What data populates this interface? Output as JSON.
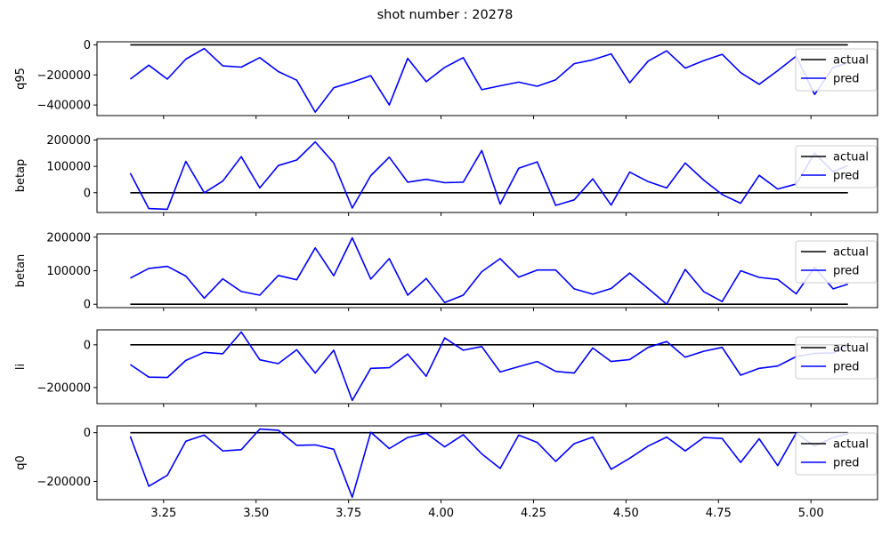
{
  "figure_title": "shot number : 20278",
  "colors": {
    "actual": "#000000",
    "pred": "#0000ff",
    "axes": "#000000",
    "legend_edge": "#cccccc"
  },
  "shared_x": {
    "xlim": [
      3.07,
      5.18
    ],
    "ticks": [
      3.25,
      3.5,
      3.75,
      4.0,
      4.25,
      4.5,
      4.75,
      5.0
    ],
    "tick_labels": [
      "3.25",
      "3.50",
      "3.75",
      "4.00",
      "4.25",
      "4.50",
      "4.75",
      "5.00"
    ]
  },
  "chart_data": [
    {
      "type": "line",
      "ylabel": "q95",
      "ylim": [
        -470000,
        20000
      ],
      "yticks": [
        0,
        -200000,
        -400000
      ],
      "ytick_labels": [
        "0",
        "−200000",
        "−400000"
      ],
      "legend": {
        "location": "upper right",
        "entries": [
          "actual",
          "pred"
        ]
      },
      "series": [
        {
          "name": "actual",
          "color": "#000000",
          "x": [
            3.16,
            5.1
          ],
          "y": [
            0,
            0
          ]
        },
        {
          "name": "pred",
          "color": "#0000ff",
          "x": [
            3.16,
            3.21,
            3.26,
            3.31,
            3.36,
            3.41,
            3.46,
            3.51,
            3.56,
            3.61,
            3.66,
            3.71,
            3.76,
            3.81,
            3.86,
            3.91,
            3.96,
            4.01,
            4.06,
            4.11,
            4.16,
            4.21,
            4.26,
            4.31,
            4.36,
            4.41,
            4.46,
            4.51,
            4.56,
            4.61,
            4.66,
            4.71,
            4.76,
            4.81,
            4.86,
            4.91,
            4.96,
            5.01,
            5.06,
            5.1
          ],
          "y": [
            -228000,
            -135000,
            -228000,
            -95000,
            -25000,
            -140000,
            -148000,
            -85000,
            -178000,
            -235000,
            -447000,
            -285000,
            -248000,
            -205000,
            -400000,
            -90000,
            -245000,
            -150000,
            -85000,
            -298000,
            -272000,
            -248000,
            -275000,
            -232000,
            -125000,
            -100000,
            -60000,
            -252000,
            -108000,
            -40000,
            -155000,
            -105000,
            -63000,
            -185000,
            -262000,
            -172000,
            -75000,
            -330000,
            -150000,
            -120000
          ]
        }
      ]
    },
    {
      "type": "line",
      "ylabel": "betap",
      "ylim": [
        -75000,
        205000
      ],
      "yticks": [
        200000,
        100000,
        0
      ],
      "ytick_labels": [
        "200000",
        "100000",
        "0"
      ],
      "legend": {
        "location": "upper right",
        "entries": [
          "actual",
          "pred"
        ]
      },
      "series": [
        {
          "name": "actual",
          "color": "#000000",
          "x": [
            3.16,
            5.1
          ],
          "y": [
            0,
            0
          ]
        },
        {
          "name": "pred",
          "color": "#0000ff",
          "x": [
            3.16,
            3.21,
            3.26,
            3.31,
            3.36,
            3.41,
            3.46,
            3.51,
            3.56,
            3.61,
            3.66,
            3.71,
            3.76,
            3.81,
            3.86,
            3.91,
            3.96,
            4.01,
            4.06,
            4.11,
            4.16,
            4.21,
            4.26,
            4.31,
            4.36,
            4.41,
            4.46,
            4.51,
            4.56,
            4.61,
            4.66,
            4.71,
            4.76,
            4.81,
            4.86,
            4.91,
            4.96,
            5.01,
            5.06,
            5.1
          ],
          "y": [
            74000,
            -60000,
            -63000,
            119000,
            0,
            44000,
            137000,
            18000,
            103000,
            124000,
            193000,
            113000,
            -58000,
            65000,
            135000,
            40000,
            51000,
            38000,
            40000,
            160000,
            -43000,
            93000,
            117000,
            -48000,
            -27000,
            53000,
            -47000,
            78000,
            42000,
            18000,
            113000,
            48000,
            -7000,
            -40000,
            66000,
            14000,
            33000,
            150000,
            80000,
            103000
          ]
        }
      ]
    },
    {
      "type": "line",
      "ylabel": "betan",
      "ylim": [
        -10000,
        210000
      ],
      "yticks": [
        200000,
        100000,
        0
      ],
      "ytick_labels": [
        "200000",
        "100000",
        "0"
      ],
      "legend": {
        "location": "upper right",
        "entries": [
          "actual",
          "pred"
        ]
      },
      "series": [
        {
          "name": "actual",
          "color": "#000000",
          "x": [
            3.16,
            5.1
          ],
          "y": [
            0,
            0
          ]
        },
        {
          "name": "pred",
          "color": "#0000ff",
          "x": [
            3.16,
            3.21,
            3.26,
            3.31,
            3.36,
            3.41,
            3.46,
            3.51,
            3.56,
            3.61,
            3.66,
            3.71,
            3.76,
            3.81,
            3.86,
            3.91,
            3.96,
            4.01,
            4.06,
            4.11,
            4.16,
            4.21,
            4.26,
            4.31,
            4.36,
            4.41,
            4.46,
            4.51,
            4.56,
            4.61,
            4.66,
            4.71,
            4.76,
            4.81,
            4.86,
            4.91,
            4.96,
            5.01,
            5.06,
            5.1
          ],
          "y": [
            78000,
            107000,
            113000,
            84000,
            18000,
            76000,
            38000,
            27000,
            86000,
            73000,
            168000,
            85000,
            198000,
            75000,
            136000,
            27000,
            77000,
            5000,
            27000,
            97000,
            136000,
            81000,
            102000,
            102000,
            46000,
            30000,
            47000,
            93000,
            47000,
            0,
            104000,
            38000,
            8000,
            100000,
            80000,
            74000,
            31000,
            110000,
            46000,
            60000
          ]
        }
      ]
    },
    {
      "type": "line",
      "ylabel": "li",
      "ylim": [
        -275000,
        70000
      ],
      "yticks": [
        0,
        -200000
      ],
      "ytick_labels": [
        "0",
        "−200000"
      ],
      "legend": {
        "location": "upper right",
        "entries": [
          "actual",
          "pred"
        ]
      },
      "series": [
        {
          "name": "actual",
          "color": "#000000",
          "x": [
            3.16,
            5.1
          ],
          "y": [
            0,
            0
          ]
        },
        {
          "name": "pred",
          "color": "#0000ff",
          "x": [
            3.16,
            3.21,
            3.26,
            3.31,
            3.36,
            3.41,
            3.46,
            3.51,
            3.56,
            3.61,
            3.66,
            3.71,
            3.76,
            3.81,
            3.86,
            3.91,
            3.96,
            4.01,
            4.06,
            4.11,
            4.16,
            4.21,
            4.26,
            4.31,
            4.36,
            4.41,
            4.46,
            4.51,
            4.56,
            4.61,
            4.66,
            4.71,
            4.76,
            4.81,
            4.86,
            4.91,
            4.96,
            5.01,
            5.06,
            5.1
          ],
          "y": [
            -92000,
            -151000,
            -153000,
            -73000,
            -35000,
            -42000,
            60000,
            -70000,
            -88000,
            -23000,
            -132000,
            -25000,
            -260000,
            -110000,
            -107000,
            -43000,
            -147000,
            32000,
            -25000,
            -8000,
            -127000,
            -102000,
            -78000,
            -124000,
            -132000,
            -15000,
            -78000,
            -69000,
            -12000,
            15000,
            -58000,
            -30000,
            -12000,
            -142000,
            -110000,
            -99000,
            -55000,
            -40000,
            -38000,
            -5000
          ]
        }
      ]
    },
    {
      "type": "line",
      "ylabel": "q0",
      "ylim": [
        -275000,
        28000
      ],
      "yticks": [
        0,
        -200000
      ],
      "ytick_labels": [
        "0",
        "−200000"
      ],
      "legend": {
        "location": "upper right",
        "entries": [
          "actual",
          "pred"
        ]
      },
      "series": [
        {
          "name": "actual",
          "color": "#000000",
          "x": [
            3.16,
            5.1
          ],
          "y": [
            0,
            0
          ]
        },
        {
          "name": "pred",
          "color": "#0000ff",
          "x": [
            3.16,
            3.21,
            3.26,
            3.31,
            3.36,
            3.41,
            3.46,
            3.51,
            3.56,
            3.61,
            3.66,
            3.71,
            3.76,
            3.81,
            3.86,
            3.91,
            3.96,
            4.01,
            4.06,
            4.11,
            4.16,
            4.21,
            4.26,
            4.31,
            4.36,
            4.41,
            4.46,
            4.51,
            4.56,
            4.61,
            4.66,
            4.71,
            4.76,
            4.81,
            4.86,
            4.91,
            4.96,
            5.01,
            5.06,
            5.1
          ],
          "y": [
            -15000,
            -220000,
            -175000,
            -35000,
            -10000,
            -75000,
            -70000,
            15000,
            10000,
            -52000,
            -50000,
            -68000,
            -265000,
            2000,
            -65000,
            -20000,
            -2000,
            -58000,
            -8000,
            -87000,
            -147000,
            -10000,
            -40000,
            -118000,
            -45000,
            -18000,
            -150000,
            -105000,
            -55000,
            -18000,
            -75000,
            -20000,
            -24000,
            -122000,
            -25000,
            -135000,
            -2000,
            -55000,
            -20000,
            -5000
          ]
        }
      ]
    }
  ]
}
